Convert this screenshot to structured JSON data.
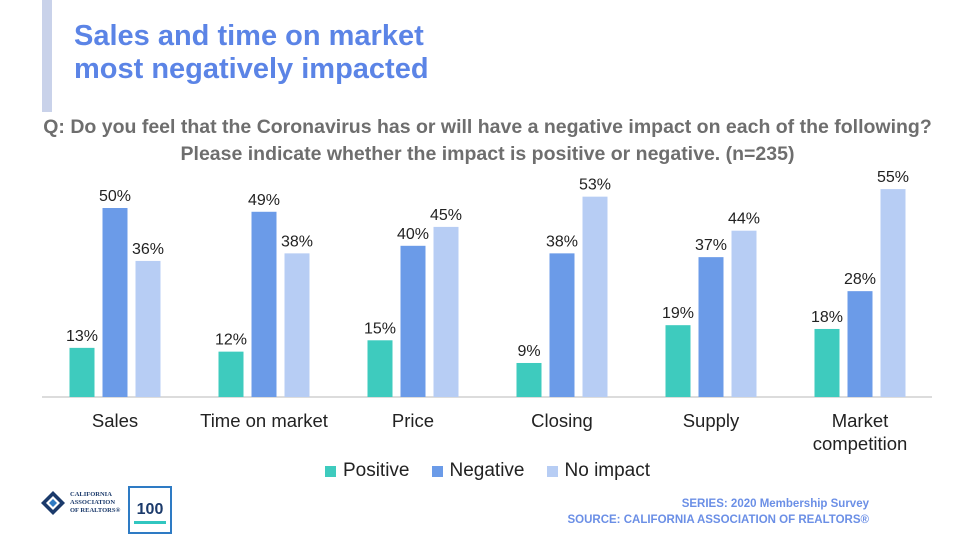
{
  "slide": {
    "title_line1": "Sales and time on market",
    "title_line2": "most negatively impacted",
    "question": "Q: Do you feel that the Coronavirus has or will have a negative impact on each of the following? Please indicate whether the impact is positive or negative. (n=235)",
    "footer_series": "SERIES: 2020 Membership Survey",
    "footer_source": "SOURCE: CALIFORNIA ASSOCIATION OF REALTORS®",
    "logo_car_lines": [
      "CALIFORNIA",
      "ASSOCIATION",
      "OF REALTORS®"
    ],
    "logo_100": "100"
  },
  "colors": {
    "positive": "#3ecbbe",
    "negative": "#6b9be8",
    "no_impact": "#b7cdf4",
    "title": "#5b84e6"
  },
  "chart_data": {
    "type": "bar",
    "categories": [
      "Sales",
      "Time on market",
      "Price",
      "Closing",
      "Supply",
      "Market competition"
    ],
    "category_lines": [
      [
        "Sales"
      ],
      [
        "Time on market"
      ],
      [
        "Price"
      ],
      [
        "Closing"
      ],
      [
        "Supply"
      ],
      [
        "Market",
        "competition"
      ]
    ],
    "series": [
      {
        "name": "Positive",
        "values": [
          13,
          12,
          15,
          9,
          19,
          18
        ],
        "labels": [
          "13%",
          "12%",
          "15%",
          "9%",
          "19%",
          "18%"
        ]
      },
      {
        "name": "Negative",
        "values": [
          50,
          49,
          40,
          38,
          37,
          28
        ],
        "labels": [
          "50%",
          "49%",
          "40%",
          "38%",
          "37%",
          "28%"
        ]
      },
      {
        "name": "No impact",
        "values": [
          36,
          38,
          45,
          53,
          44,
          55
        ],
        "labels": [
          "36%",
          "38%",
          "45%",
          "53%",
          "44%",
          "55%"
        ]
      }
    ],
    "ylim": [
      0,
      60
    ],
    "grid": false,
    "legend_position": "bottom"
  }
}
